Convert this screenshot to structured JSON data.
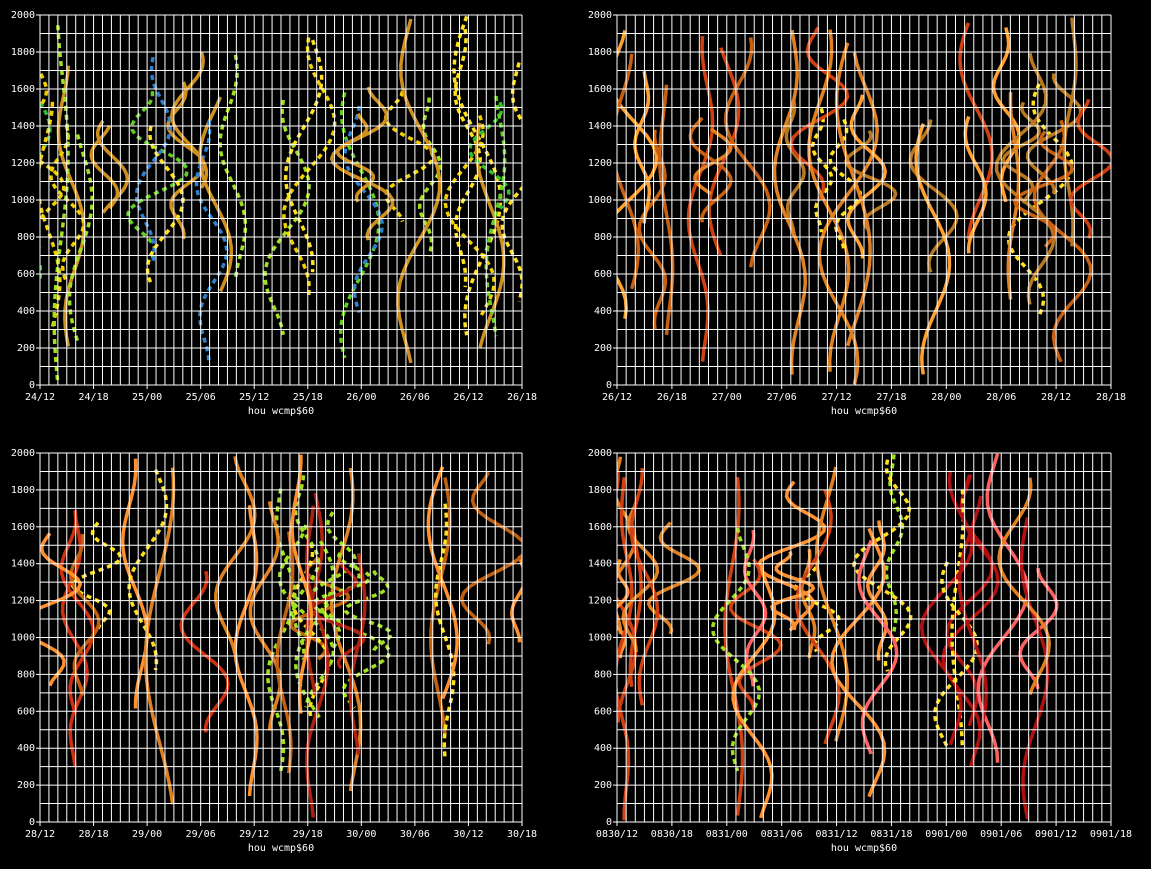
{
  "chart_data": [
    {
      "type": "contour",
      "xlabel": "hou wcmp$60",
      "categories": [
        "24/12",
        "24/18",
        "25/00",
        "25/06",
        "25/12",
        "25/18",
        "26/00",
        "26/06",
        "26/12",
        "26/18"
      ],
      "ylim": [
        0,
        2000
      ],
      "yticks": [
        0,
        200,
        400,
        600,
        800,
        1000,
        1200,
        1400,
        1600,
        1800,
        2000
      ],
      "grid": true
    },
    {
      "type": "contour",
      "xlabel": "hou wcmp$60",
      "categories": [
        "26/12",
        "26/18",
        "27/00",
        "27/06",
        "27/12",
        "27/18",
        "28/00",
        "28/06",
        "28/12",
        "28/18"
      ],
      "ylim": [
        0,
        2000
      ],
      "yticks": [
        0,
        200,
        400,
        600,
        800,
        1000,
        1200,
        1400,
        1600,
        1800,
        2000
      ],
      "grid": true
    },
    {
      "type": "contour",
      "xlabel": "hou wcmp$60",
      "categories": [
        "28/12",
        "28/18",
        "29/00",
        "29/06",
        "29/12",
        "29/18",
        "30/00",
        "30/06",
        "30/12",
        "30/18"
      ],
      "ylim": [
        0,
        2000
      ],
      "yticks": [
        0,
        200,
        400,
        600,
        800,
        1000,
        1200,
        1400,
        1600,
        1800,
        2000
      ],
      "grid": true
    },
    {
      "type": "contour",
      "xlabel": "hou wcmp$60",
      "categories": [
        "0830/12",
        "0830/18",
        "0831/00",
        "0831/06",
        "0831/12",
        "0831/18",
        "0901/00",
        "0901/06",
        "0901/12",
        "0901/18"
      ],
      "ylim": [
        0,
        2000
      ],
      "yticks": [
        0,
        200,
        400,
        600,
        800,
        1000,
        1200,
        1400,
        1600,
        1800,
        2000
      ],
      "grid": true
    }
  ]
}
